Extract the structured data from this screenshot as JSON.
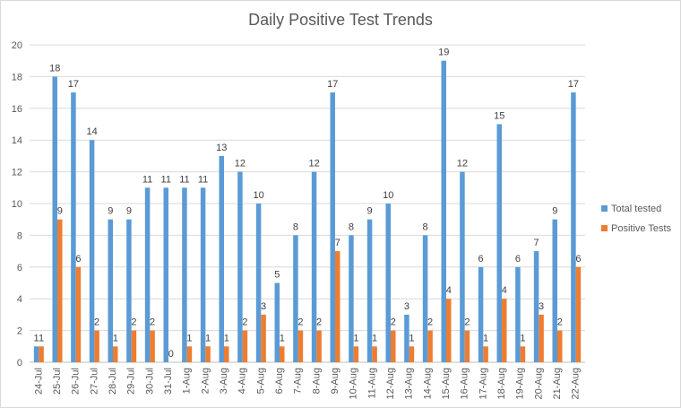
{
  "chart_data": {
    "type": "bar",
    "title": "Daily Positive Test Trends",
    "xlabel": "",
    "ylabel": "",
    "ylim": [
      0,
      20
    ],
    "ytick_step": 2,
    "grid": true,
    "legend_position": "right",
    "categories": [
      "24-Jul",
      "25-Jul",
      "26-Jul",
      "27-Jul",
      "28-Jul",
      "29-Jul",
      "30-Jul",
      "31-Jul",
      "1-Aug",
      "2-Aug",
      "3-Aug",
      "4-Aug",
      "5-Aug",
      "6-Aug",
      "7-Aug",
      "8-Aug",
      "9-Aug",
      "10-Aug",
      "11-Aug",
      "12-Aug",
      "13-Aug",
      "14-Aug",
      "15-Aug",
      "16-Aug",
      "17-Aug",
      "18-Aug",
      "19-Aug",
      "20-Aug",
      "21-Aug",
      "22-Aug"
    ],
    "series": [
      {
        "name": "Total tested",
        "color": "#5b9bd5",
        "values": [
          1,
          18,
          17,
          14,
          9,
          9,
          11,
          11,
          11,
          11,
          13,
          12,
          10,
          5,
          8,
          12,
          17,
          8,
          9,
          10,
          3,
          8,
          19,
          12,
          6,
          15,
          6,
          7,
          9,
          17
        ]
      },
      {
        "name": "Positive Tests",
        "color": "#ed7d31",
        "values": [
          1,
          9,
          6,
          2,
          1,
          2,
          2,
          0,
          1,
          1,
          1,
          2,
          3,
          1,
          2,
          2,
          7,
          1,
          1,
          2,
          1,
          2,
          4,
          2,
          1,
          4,
          1,
          3,
          2,
          6
        ]
      }
    ]
  }
}
